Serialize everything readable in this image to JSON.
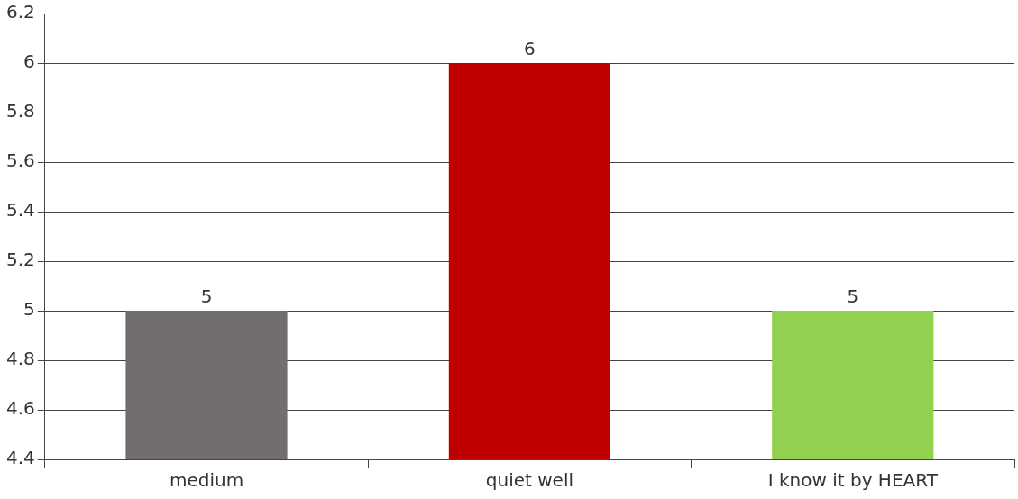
{
  "chart_data": {
    "type": "bar",
    "categories": [
      "medium",
      "quiet well",
      "I know it by HEART"
    ],
    "values": [
      5,
      6,
      5
    ],
    "colors": [
      "#736e6e",
      "#c00000",
      "#92d050"
    ],
    "ylim": [
      4.4,
      6.2
    ],
    "yticks": [
      4.4,
      4.6,
      4.8,
      5,
      5.2,
      5.4,
      5.6,
      5.8,
      6,
      6.2
    ],
    "grid": "y",
    "data_labels": true
  }
}
